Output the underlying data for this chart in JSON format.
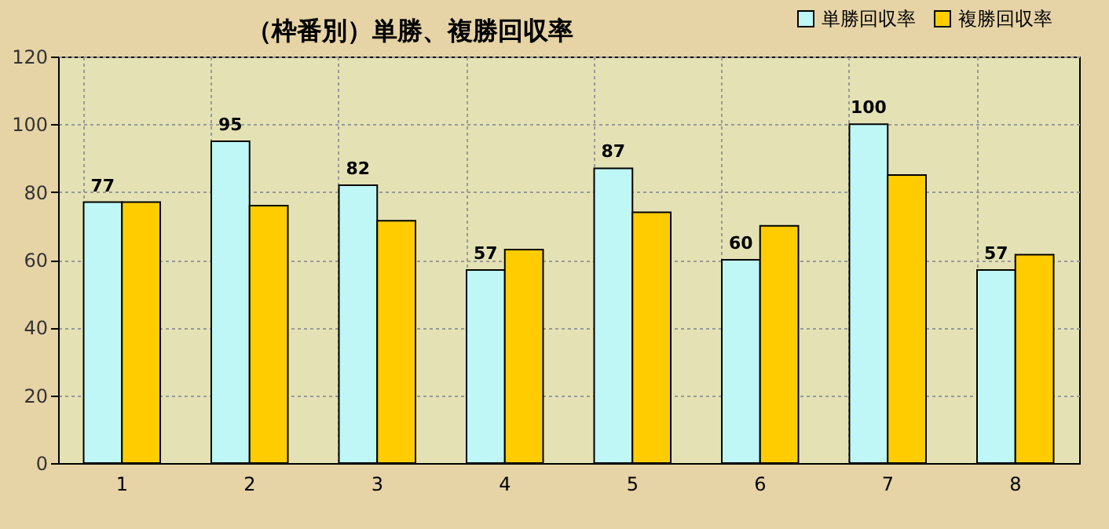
{
  "chart_data": {
    "type": "bar",
    "title": "（枠番別）単勝、複勝回収率",
    "categories": [
      "1",
      "2",
      "3",
      "4",
      "5",
      "6",
      "7",
      "8"
    ],
    "series": [
      {
        "name": "単勝回収率",
        "color": "#bff7f7",
        "values": [
          77,
          95,
          82,
          57,
          87,
          60,
          100,
          57
        ],
        "value_labels": [
          "77",
          "95",
          "82",
          "57",
          "87",
          "60",
          "100",
          "57"
        ]
      },
      {
        "name": "複勝回収率",
        "color": "#ffcc00",
        "values": [
          77,
          76,
          71.5,
          63,
          74,
          70,
          85,
          61.5
        ]
      }
    ],
    "ylim": [
      0,
      120
    ],
    "yticks": [
      0,
      20,
      40,
      60,
      80,
      100,
      120
    ],
    "grid": true,
    "legend": "top right"
  }
}
